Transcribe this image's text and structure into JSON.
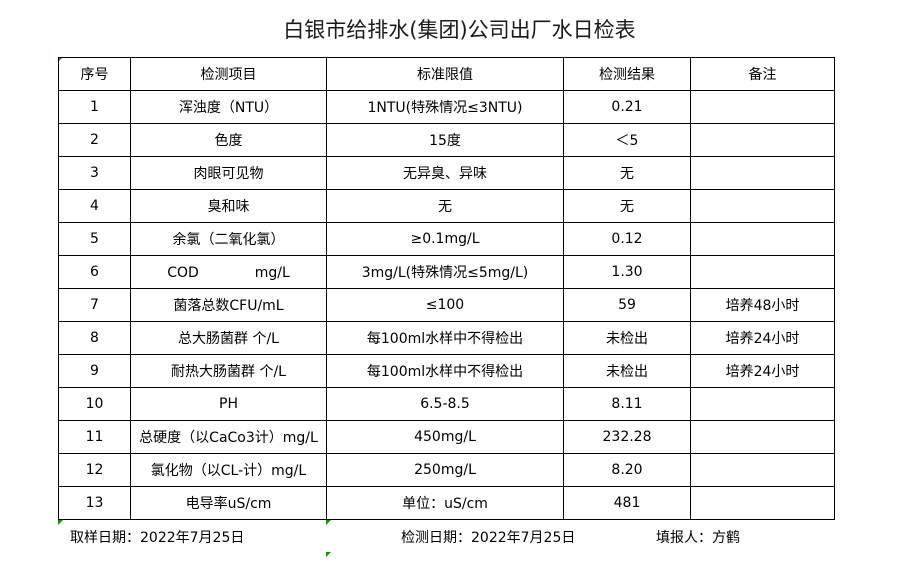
{
  "title": "白银市给排水(集团)公司出厂水日检表",
  "headers": [
    "序号",
    "检测项目",
    "标准限值",
    "检测结果",
    "备注"
  ],
  "rows": [
    [
      "1",
      "浑浊度（NTU）",
      "1NTU(特殊情况≤3NTU)",
      "0.21",
      ""
    ],
    [
      "2",
      "色度",
      "15度",
      "＜5",
      ""
    ],
    [
      "3",
      "肉眼可见物",
      "无异臭、异味",
      "无",
      ""
    ],
    [
      "4",
      "臭和味",
      "无",
      "无",
      ""
    ],
    [
      "5",
      "余氯（二氧化氯）",
      "≥0.1mg/L",
      "0.12",
      ""
    ],
    [
      "6",
      "COD　　　　mg/L",
      "3mg/L(特殊情况≤5mg/L)",
      "1.30",
      ""
    ],
    [
      "7",
      "菌落总数CFU/mL",
      "≤100",
      "59",
      "培养48小时"
    ],
    [
      "8",
      "总大肠菌群 个/L",
      "每100ml水样中不得检出",
      "未检出",
      "培养24小时"
    ],
    [
      "9",
      "耐热大肠菌群 个/L",
      "每100ml水样中不得检出",
      "未检出",
      "培养24小时"
    ],
    [
      "10",
      "PH",
      "6.5-8.5",
      "8.11",
      ""
    ],
    [
      "11",
      "总硬度（以CaCo3计）mg/L",
      "450mg/L",
      "232.28",
      ""
    ],
    [
      "12",
      "氯化物（以CL-计）mg/L",
      "250mg/L",
      "8.20",
      ""
    ],
    [
      "13",
      "电导率uS/cm",
      "单位：uS/cm",
      "481",
      ""
    ]
  ],
  "footer": {
    "sample_date": "取样日期：2022年7月25日",
    "test_date": "检测日期：2022年7月25日",
    "reporter": "填报人：方鹤"
  }
}
